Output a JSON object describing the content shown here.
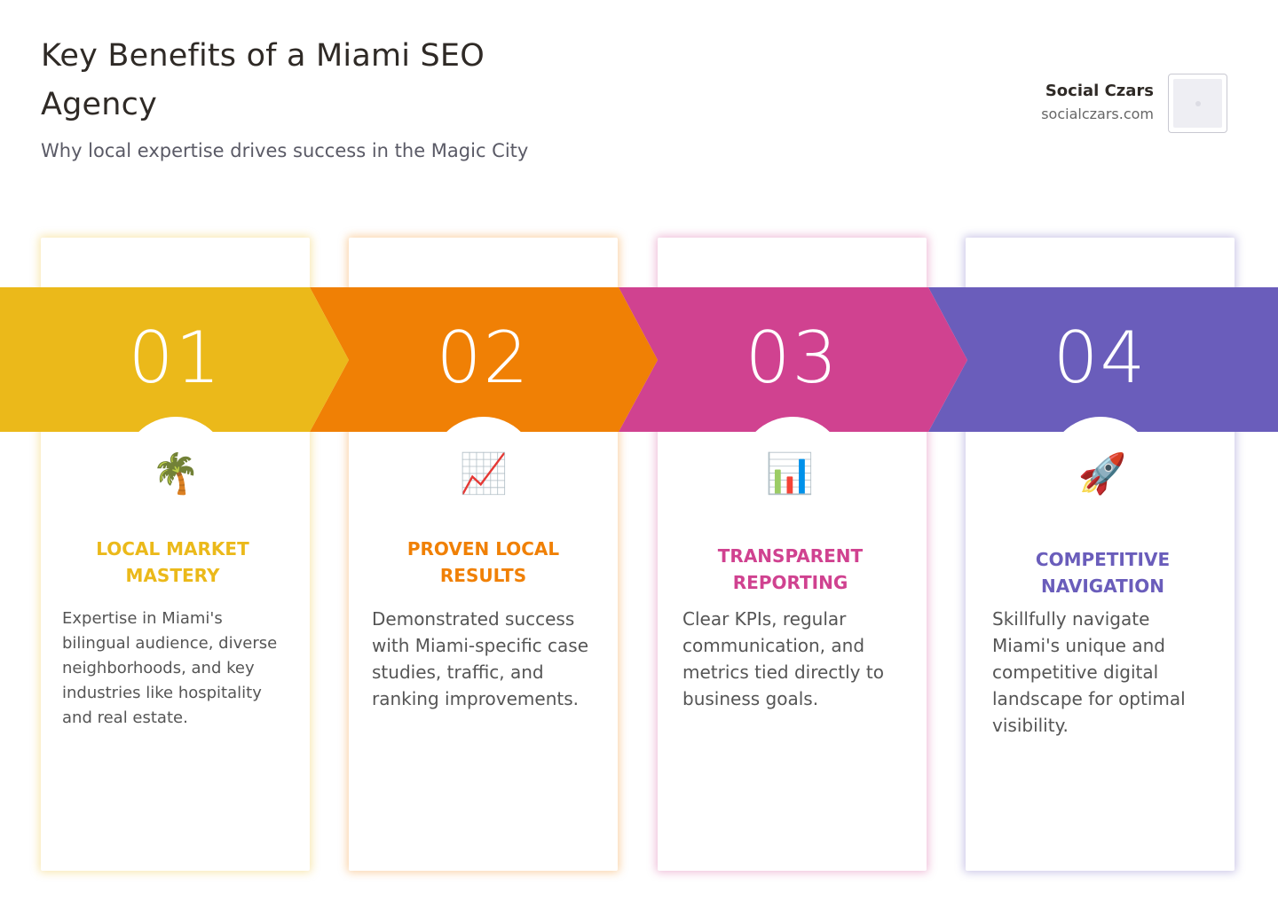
{
  "header": {
    "title": "Key Benefits of a Miami SEO Agency",
    "subtitle": "Why local expertise drives success in the Magic City"
  },
  "brand": {
    "name": "Social Czars",
    "url": "socialczars.com"
  },
  "colors": {
    "step1": "#EBB91A",
    "step2": "#F08005",
    "step3": "#D04290",
    "step4": "#6A5DBB"
  },
  "steps": [
    {
      "number": "01",
      "icon": "palm-tree-icon",
      "icon_glyph": "🌴",
      "title": "LOCAL MARKET MASTERY",
      "description": "Expertise in Miami's bilingual audience, diverse neighborhoods, and key industries like hospitality and real estate."
    },
    {
      "number": "02",
      "icon": "chart-increasing-icon",
      "icon_glyph": "📈",
      "title": "PROVEN LOCAL RESULTS",
      "description": "Demonstrated success with Miami-specific case studies, traffic, and ranking improvements."
    },
    {
      "number": "03",
      "icon": "bar-chart-icon",
      "icon_glyph": "📊",
      "title": "TRANSPARENT REPORTING",
      "description": "Clear KPIs, regular communication, and metrics tied directly to business goals."
    },
    {
      "number": "04",
      "icon": "rocket-icon",
      "icon_glyph": "🚀",
      "title": "COMPETITIVE NAVIGATION",
      "description": "Skillfully navigate Miami's unique and competitive digital landscape for optimal visibility."
    }
  ]
}
